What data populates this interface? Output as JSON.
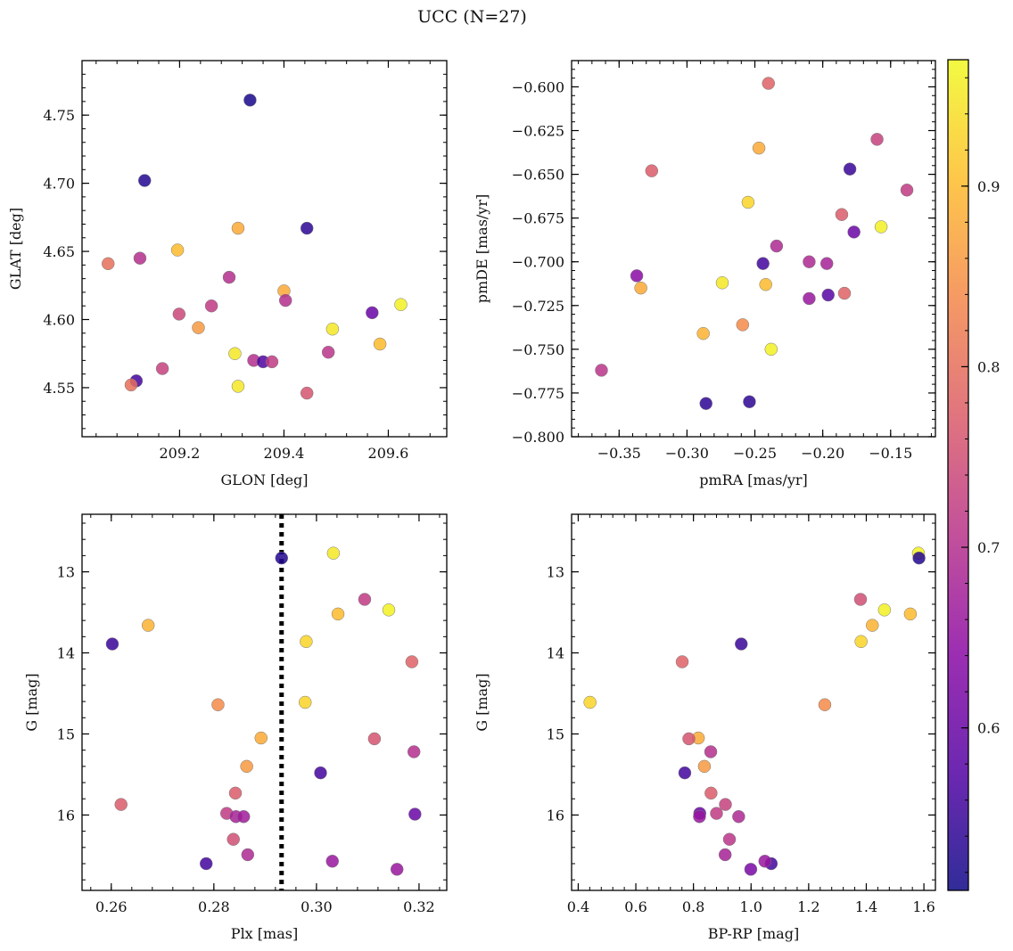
{
  "figure": {
    "title": "UCC (N=27)",
    "colorbar": {
      "colormap": "plasma",
      "range": [
        0.51,
        0.97
      ],
      "ticks": [
        0.6,
        0.7,
        0.8,
        0.9
      ],
      "tick_labels": [
        "0.6",
        "0.7",
        "0.8",
        "0.9"
      ]
    }
  },
  "colors": {
    "plasma_stops": [
      "#0d0887",
      "#5302a3",
      "#8b0aa5",
      "#b83289",
      "#db5c68",
      "#f48849",
      "#febd2a",
      "#f0f921"
    ],
    "vline": "#000000",
    "marker_edge": "#777777"
  },
  "chart_data": [
    {
      "type": "scatter",
      "xlabel": "GLON [deg]",
      "ylabel": "GLAT [deg]",
      "xlim": [
        209.013,
        209.712
      ],
      "ylim": [
        4.514,
        4.79
      ],
      "invert_y": false,
      "xticks": [
        209.0,
        209.2,
        209.4,
        209.6
      ],
      "xtick_labels": [
        "209.0",
        "209.2",
        "209.4",
        "209.6"
      ],
      "yticks": [
        4.55,
        4.6,
        4.65,
        4.7,
        4.75
      ],
      "ytick_labels": [
        "4.55",
        "4.60",
        "4.65",
        "4.70",
        "4.75"
      ],
      "x": [
        209.335,
        209.133,
        209.444,
        209.312,
        209.063,
        209.124,
        209.196,
        209.295,
        209.4,
        209.403,
        209.261,
        209.199,
        209.236,
        209.569,
        209.624,
        209.493,
        209.584,
        209.306,
        209.167,
        209.117,
        209.107,
        209.342,
        209.36,
        209.377,
        209.485,
        209.444,
        209.312
      ],
      "y": [
        4.761,
        4.702,
        4.667,
        4.667,
        4.641,
        4.645,
        4.651,
        4.631,
        4.621,
        4.614,
        4.61,
        4.604,
        4.594,
        4.605,
        4.611,
        4.593,
        4.582,
        4.575,
        4.564,
        4.555,
        4.552,
        4.57,
        4.569,
        4.569,
        4.576,
        4.546,
        4.551
      ],
      "c": [
        0.52,
        0.53,
        0.54,
        0.88,
        0.8,
        0.7,
        0.9,
        0.7,
        0.88,
        0.7,
        0.72,
        0.74,
        0.86,
        0.6,
        0.96,
        0.95,
        0.9,
        0.95,
        0.73,
        0.56,
        0.8,
        0.7,
        0.57,
        0.72,
        0.71,
        0.76,
        0.95
      ]
    },
    {
      "type": "scatter",
      "xlabel": "pmRA [mas/yr]",
      "ylabel": "pmDE [mas/yr]",
      "xlim": [
        -0.385,
        -0.117
      ],
      "ylim": [
        -0.8,
        -0.585
      ],
      "invert_y": false,
      "xticks": [
        -0.35,
        -0.3,
        -0.25,
        -0.2,
        -0.15
      ],
      "xtick_labels": [
        "−0.35",
        "−0.30",
        "−0.25",
        "−0.20",
        "−0.15"
      ],
      "yticks": [
        -0.8,
        -0.775,
        -0.75,
        -0.725,
        -0.7,
        -0.675,
        -0.65,
        -0.625,
        -0.6
      ],
      "ytick_labels": [
        "−0.800",
        "−0.775",
        "−0.750",
        "−0.725",
        "−0.700",
        "−0.675",
        "−0.650",
        "−0.625",
        "−0.600"
      ],
      "x": [
        -0.24,
        -0.16,
        -0.247,
        -0.18,
        -0.326,
        -0.138,
        -0.255,
        -0.186,
        -0.157,
        -0.177,
        -0.234,
        -0.244,
        -0.21,
        -0.197,
        -0.337,
        -0.334,
        -0.274,
        -0.242,
        -0.196,
        -0.21,
        -0.184,
        -0.259,
        -0.288,
        -0.238,
        -0.363,
        -0.286,
        -0.254
      ],
      "y": [
        -0.598,
        -0.63,
        -0.635,
        -0.647,
        -0.648,
        -0.659,
        -0.666,
        -0.673,
        -0.68,
        -0.683,
        -0.691,
        -0.701,
        -0.7,
        -0.701,
        -0.708,
        -0.715,
        -0.712,
        -0.713,
        -0.719,
        -0.721,
        -0.718,
        -0.736,
        -0.741,
        -0.75,
        -0.762,
        -0.781,
        -0.78
      ],
      "c": [
        0.78,
        0.73,
        0.88,
        0.55,
        0.77,
        0.72,
        0.93,
        0.77,
        0.96,
        0.6,
        0.69,
        0.56,
        0.69,
        0.68,
        0.64,
        0.88,
        0.95,
        0.9,
        0.58,
        0.66,
        0.78,
        0.84,
        0.89,
        0.96,
        0.71,
        0.54,
        0.54
      ]
    },
    {
      "type": "scatter",
      "xlabel": "Plx [mas]",
      "ylabel": "G [mag]",
      "xlim": [
        0.2543,
        0.3254
      ],
      "ylim": [
        16.93,
        12.29
      ],
      "invert_y": true,
      "vline": 0.2932,
      "xticks": [
        0.26,
        0.28,
        0.3,
        0.32
      ],
      "xtick_labels": [
        "0.26",
        "0.28",
        "0.30",
        "0.32"
      ],
      "yticks": [
        13,
        14,
        15,
        16
      ],
      "ytick_labels": [
        "13",
        "14",
        "15",
        "16"
      ],
      "x": [
        0.2932,
        0.3033,
        0.3094,
        0.3141,
        0.3042,
        0.2672,
        0.2602,
        0.298,
        0.3186,
        0.2978,
        0.2808,
        0.2892,
        0.3113,
        0.319,
        0.2864,
        0.3008,
        0.2842,
        0.2619,
        0.2825,
        0.2843,
        0.2858,
        0.2838,
        0.2866,
        0.2785,
        0.3031,
        0.3157,
        0.3192
      ],
      "y": [
        12.83,
        12.77,
        13.34,
        13.47,
        13.52,
        13.66,
        13.89,
        13.86,
        14.11,
        14.61,
        14.64,
        15.05,
        15.06,
        15.22,
        15.4,
        15.48,
        15.73,
        15.87,
        15.98,
        16.02,
        16.02,
        16.3,
        16.49,
        16.6,
        16.57,
        16.67,
        15.99
      ],
      "c": [
        0.53,
        0.95,
        0.72,
        0.96,
        0.9,
        0.89,
        0.55,
        0.93,
        0.78,
        0.93,
        0.84,
        0.88,
        0.76,
        0.7,
        0.86,
        0.56,
        0.77,
        0.77,
        0.72,
        0.68,
        0.67,
        0.75,
        0.69,
        0.56,
        0.66,
        0.66,
        0.6
      ]
    },
    {
      "type": "scatter",
      "xlabel": "BP-RP [mag]",
      "ylabel": "G [mag]",
      "xlim": [
        0.377,
        1.64
      ],
      "ylim": [
        16.93,
        12.29
      ],
      "invert_y": true,
      "xticks": [
        0.4,
        0.6,
        0.8,
        1.0,
        1.2,
        1.4,
        1.6
      ],
      "xtick_labels": [
        "0.4",
        "0.6",
        "0.8",
        "1.0",
        "1.2",
        "1.4",
        "1.6"
      ],
      "yticks": [
        13,
        14,
        15,
        16
      ],
      "ytick_labels": [
        "13",
        "14",
        "15",
        "16"
      ],
      "x": [
        1.581,
        1.583,
        1.38,
        1.463,
        1.553,
        1.421,
        0.966,
        1.382,
        0.761,
        0.441,
        1.256,
        0.817,
        0.784,
        0.86,
        0.838,
        0.77,
        0.861,
        0.911,
        0.822,
        0.821,
        0.88,
        0.957,
        0.925,
        1.07,
        1.048,
        0.999,
        0.91
      ],
      "y": [
        12.77,
        12.83,
        13.34,
        13.47,
        13.52,
        13.66,
        13.89,
        13.86,
        14.11,
        14.61,
        14.64,
        15.05,
        15.06,
        15.22,
        15.4,
        15.48,
        15.73,
        15.87,
        15.98,
        16.02,
        15.98,
        16.02,
        16.3,
        16.6,
        16.57,
        16.67,
        16.49
      ],
      "c": [
        0.96,
        0.53,
        0.75,
        0.96,
        0.9,
        0.89,
        0.55,
        0.93,
        0.78,
        0.93,
        0.84,
        0.88,
        0.76,
        0.7,
        0.86,
        0.56,
        0.77,
        0.73,
        0.6,
        0.66,
        0.72,
        0.69,
        0.71,
        0.56,
        0.66,
        0.62,
        0.68
      ]
    }
  ]
}
